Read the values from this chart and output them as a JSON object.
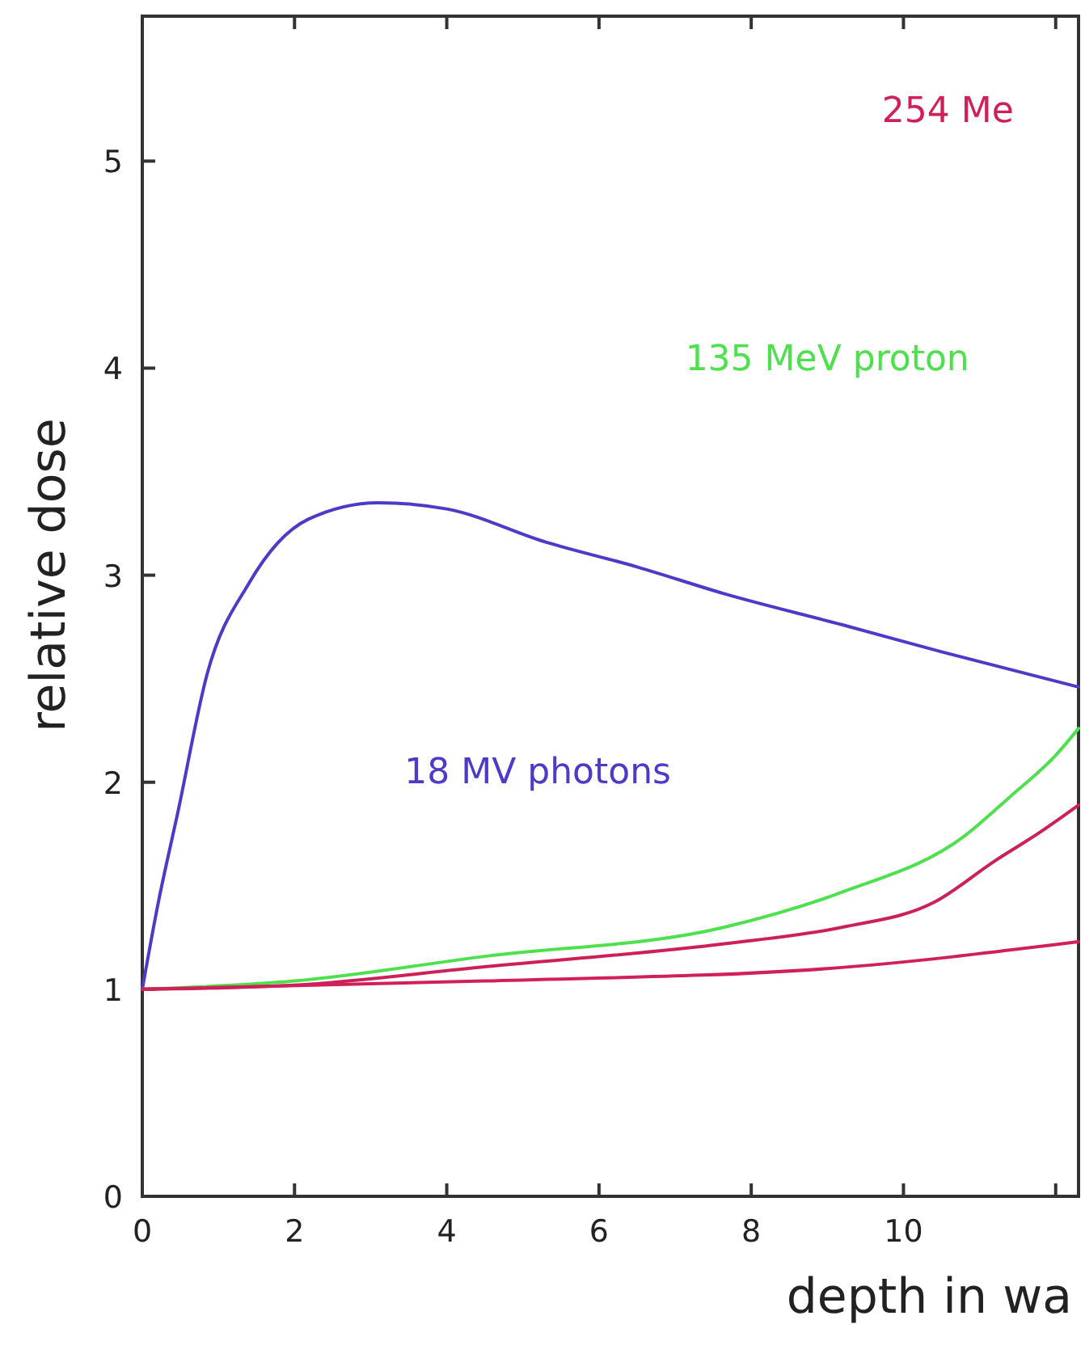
{
  "chart_data": {
    "type": "line",
    "xlabel": "depth in wa",
    "ylabel": "relative dose",
    "xlim": [
      0,
      12.3
    ],
    "ylim": [
      0,
      5.7
    ],
    "xticks": [
      0,
      2,
      4,
      6,
      8,
      10,
      {
        "value": 12,
        "label": null
      }
    ],
    "yticks": [
      0,
      1,
      2,
      3,
      4,
      5
    ],
    "grid": false,
    "marker": "none",
    "line_style": "solid",
    "series": [
      {
        "name": "18 MV photons",
        "color": "#4b3bc8",
        "x": [
          0,
          0.2,
          0.47,
          0.85,
          1.4,
          2.18,
          3.1,
          4,
          5.3,
          6.5,
          7.65,
          9.2,
          10.5,
          12.3
        ],
        "values": [
          1,
          1.4,
          1.86,
          2.52,
          2.96,
          3.27,
          3.35,
          3.32,
          3.16,
          3.04,
          2.91,
          2.76,
          2.63,
          2.46
        ]
      },
      {
        "name": "135 MeV proton",
        "color": "#4fe04f",
        "x": [
          0,
          2,
          4.52,
          7.65,
          9.2,
          10.8,
          11.4,
          12,
          12.3
        ],
        "values": [
          1,
          1.04,
          1.16,
          1.3,
          1.47,
          1.74,
          1.93,
          2.13,
          2.26
        ]
      },
      {
        "color": "#cc2058",
        "x": [
          0,
          2,
          4.52,
          7.65,
          9.2,
          10.4,
          11.2,
          11.8,
          12.3
        ],
        "values": [
          1,
          1.02,
          1.11,
          1.22,
          1.3,
          1.42,
          1.62,
          1.76,
          1.89
        ]
      },
      {
        "name": "254 Me",
        "color": "#d0205a",
        "x": [
          0,
          4.5,
          9,
          12.3
        ],
        "values": [
          1,
          1.04,
          1.1,
          1.23
        ]
      }
    ]
  }
}
